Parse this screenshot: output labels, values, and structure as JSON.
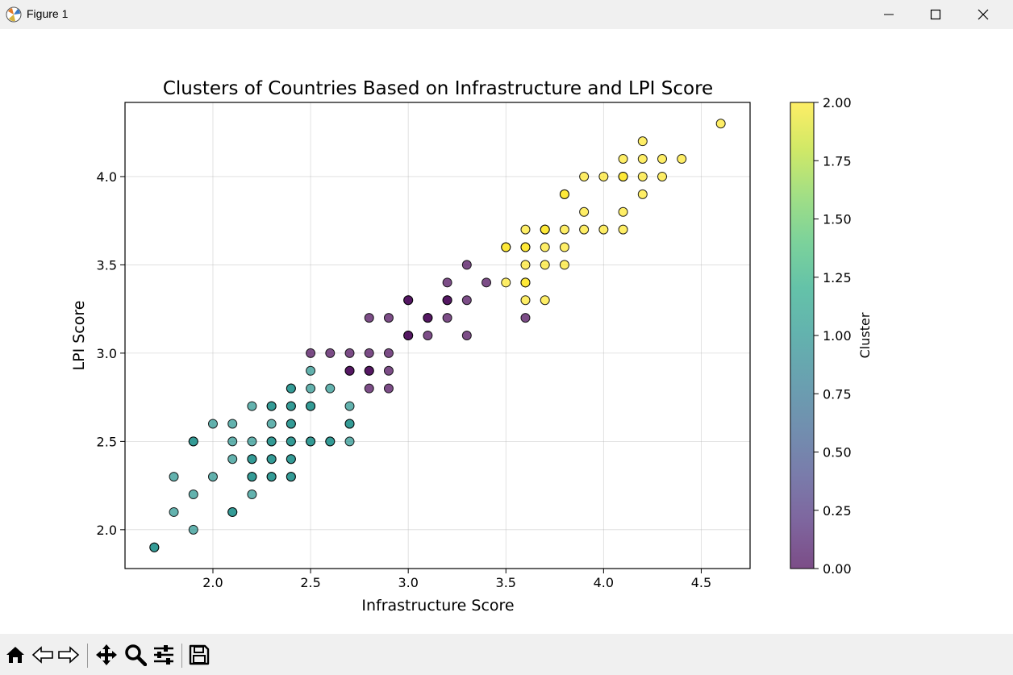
{
  "window": {
    "title": "Figure 1",
    "icons": [
      "matplotlib-icon",
      "minimize-icon",
      "maximize-icon",
      "close-icon"
    ]
  },
  "toolbar": {
    "buttons": [
      {
        "name": "home-icon"
      },
      {
        "name": "back-icon"
      },
      {
        "name": "forward-icon"
      },
      {
        "name": "pan-icon"
      },
      {
        "name": "zoom-icon"
      },
      {
        "name": "configure-subplots-icon"
      },
      {
        "name": "save-icon"
      }
    ]
  },
  "chart_data": {
    "type": "scatter",
    "title": "Clusters of Countries Based on Infrastructure and LPI Score",
    "xlabel": "Infrastructure Score",
    "ylabel": "LPI Score",
    "xlim": [
      1.55,
      4.75
    ],
    "ylim": [
      1.78,
      4.42
    ],
    "xticks": [
      2.0,
      2.5,
      3.0,
      3.5,
      4.0,
      4.5
    ],
    "yticks": [
      2.0,
      2.5,
      3.0,
      3.5,
      4.0
    ],
    "grid": true,
    "colormap": "viridis",
    "marker_alpha": 0.7,
    "colorbar": {
      "label": "Cluster",
      "range": [
        0.0,
        2.0
      ],
      "ticks": [
        "0.00",
        "0.25",
        "0.50",
        "0.75",
        "1.00",
        "1.25",
        "1.50",
        "1.75",
        "2.00"
      ]
    },
    "cluster_colors": {
      "0": "#440154",
      "1": "#21918c",
      "2": "#fde725"
    },
    "series": [
      {
        "cluster": 0,
        "points": [
          [
            2.5,
            3.0
          ],
          [
            2.6,
            3.0
          ],
          [
            2.7,
            3.0
          ],
          [
            2.8,
            3.0
          ],
          [
            2.9,
            3.0
          ],
          [
            2.7,
            2.9
          ],
          [
            2.7,
            2.9
          ],
          [
            2.8,
            2.9
          ],
          [
            2.8,
            2.9
          ],
          [
            2.9,
            2.9
          ],
          [
            2.8,
            2.8
          ],
          [
            2.9,
            2.8
          ],
          [
            2.8,
            3.2
          ],
          [
            2.9,
            3.2
          ],
          [
            3.0,
            3.3
          ],
          [
            3.0,
            3.3
          ],
          [
            3.0,
            3.1
          ],
          [
            3.0,
            3.1
          ],
          [
            3.1,
            3.2
          ],
          [
            3.1,
            3.2
          ],
          [
            3.1,
            3.1
          ],
          [
            3.2,
            3.4
          ],
          [
            3.2,
            3.3
          ],
          [
            3.2,
            3.3
          ],
          [
            3.2,
            3.2
          ],
          [
            3.3,
            3.5
          ],
          [
            3.3,
            3.3
          ],
          [
            3.3,
            3.1
          ],
          [
            3.4,
            3.4
          ],
          [
            3.6,
            3.2
          ]
        ]
      },
      {
        "cluster": 1,
        "points": [
          [
            1.7,
            1.9
          ],
          [
            1.7,
            1.9
          ],
          [
            1.8,
            2.3
          ],
          [
            1.8,
            2.1
          ],
          [
            1.9,
            2.5
          ],
          [
            1.9,
            2.5
          ],
          [
            1.9,
            2.2
          ],
          [
            1.9,
            2.0
          ],
          [
            2.0,
            2.6
          ],
          [
            2.0,
            2.3
          ],
          [
            2.1,
            2.6
          ],
          [
            2.1,
            2.5
          ],
          [
            2.1,
            2.4
          ],
          [
            2.1,
            2.1
          ],
          [
            2.1,
            2.1
          ],
          [
            2.2,
            2.7
          ],
          [
            2.2,
            2.5
          ],
          [
            2.2,
            2.4
          ],
          [
            2.2,
            2.4
          ],
          [
            2.2,
            2.3
          ],
          [
            2.2,
            2.3
          ],
          [
            2.2,
            2.2
          ],
          [
            2.3,
            2.7
          ],
          [
            2.3,
            2.7
          ],
          [
            2.3,
            2.6
          ],
          [
            2.3,
            2.5
          ],
          [
            2.3,
            2.5
          ],
          [
            2.3,
            2.4
          ],
          [
            2.3,
            2.4
          ],
          [
            2.3,
            2.3
          ],
          [
            2.3,
            2.3
          ],
          [
            2.4,
            2.8
          ],
          [
            2.4,
            2.8
          ],
          [
            2.4,
            2.7
          ],
          [
            2.4,
            2.7
          ],
          [
            2.4,
            2.6
          ],
          [
            2.4,
            2.6
          ],
          [
            2.4,
            2.5
          ],
          [
            2.4,
            2.5
          ],
          [
            2.4,
            2.4
          ],
          [
            2.4,
            2.4
          ],
          [
            2.4,
            2.3
          ],
          [
            2.4,
            2.3
          ],
          [
            2.5,
            2.9
          ],
          [
            2.5,
            2.8
          ],
          [
            2.5,
            2.7
          ],
          [
            2.5,
            2.7
          ],
          [
            2.5,
            2.5
          ],
          [
            2.5,
            2.5
          ],
          [
            2.6,
            2.8
          ],
          [
            2.6,
            2.5
          ],
          [
            2.6,
            2.5
          ],
          [
            2.7,
            2.7
          ],
          [
            2.7,
            2.6
          ],
          [
            2.7,
            2.6
          ],
          [
            2.7,
            2.5
          ]
        ]
      },
      {
        "cluster": 2,
        "points": [
          [
            3.5,
            3.6
          ],
          [
            3.5,
            3.6
          ],
          [
            3.5,
            3.4
          ],
          [
            3.6,
            3.7
          ],
          [
            3.6,
            3.6
          ],
          [
            3.6,
            3.6
          ],
          [
            3.6,
            3.5
          ],
          [
            3.6,
            3.4
          ],
          [
            3.6,
            3.4
          ],
          [
            3.6,
            3.3
          ],
          [
            3.7,
            3.7
          ],
          [
            3.7,
            3.7
          ],
          [
            3.7,
            3.6
          ],
          [
            3.7,
            3.5
          ],
          [
            3.7,
            3.3
          ],
          [
            3.8,
            3.9
          ],
          [
            3.8,
            3.9
          ],
          [
            3.8,
            3.7
          ],
          [
            3.8,
            3.6
          ],
          [
            3.8,
            3.5
          ],
          [
            3.9,
            4.0
          ],
          [
            3.9,
            3.8
          ],
          [
            3.9,
            3.7
          ],
          [
            4.0,
            4.0
          ],
          [
            4.0,
            3.7
          ],
          [
            4.1,
            4.1
          ],
          [
            4.1,
            4.0
          ],
          [
            4.1,
            4.0
          ],
          [
            4.1,
            3.8
          ],
          [
            4.1,
            3.7
          ],
          [
            4.2,
            4.2
          ],
          [
            4.2,
            4.1
          ],
          [
            4.2,
            4.0
          ],
          [
            4.2,
            3.9
          ],
          [
            4.3,
            4.1
          ],
          [
            4.3,
            4.0
          ],
          [
            4.4,
            4.1
          ],
          [
            4.6,
            4.3
          ]
        ]
      }
    ]
  }
}
